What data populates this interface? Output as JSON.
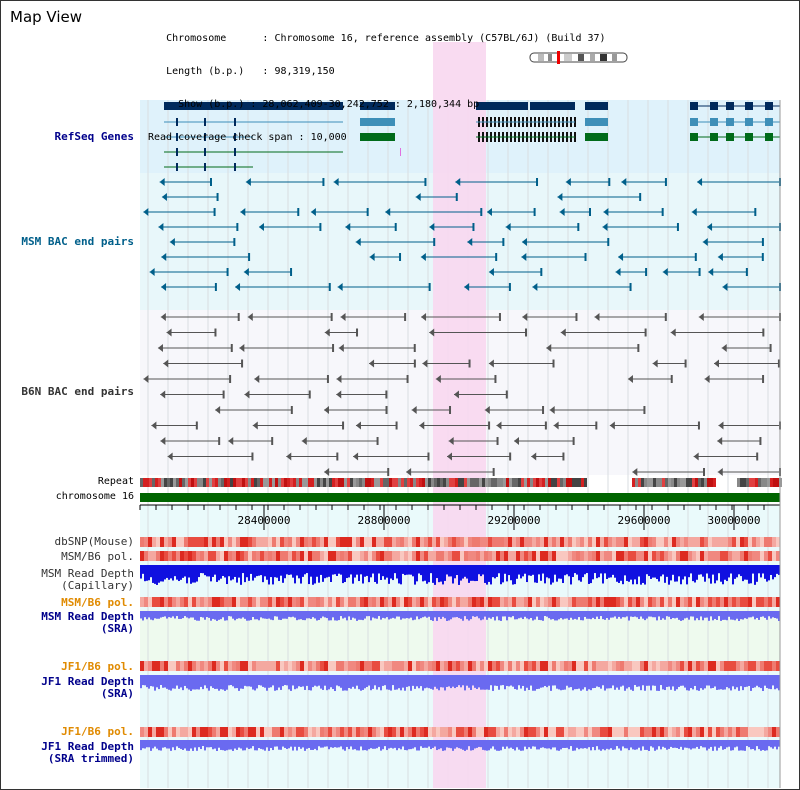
{
  "view_title": "Map View",
  "info": {
    "chromosome_label": "Chromosome",
    "chromosome_value": "Chromosome 16, reference assembly (C57BL/6J) (Build 37)",
    "length_label": "Length (b.p.)",
    "length_value": "98,319,150",
    "show_label": "Show (b.p.)",
    "show_value": "28,062,409-30,242,752 : 2,180,344 bp",
    "coverage_label": "Read coverage check span",
    "coverage_value": "10,000"
  },
  "tracks": {
    "refseq": "RefSeq Genes",
    "msm_bac": "MSM BAC end pairs",
    "b6n_bac": "B6N BAC end pairs",
    "repeat": "Repeat",
    "chromosome": "chromosome 16",
    "dbsnp": "dbSNP(Mouse)",
    "msm_b6_pol_1": "MSM/B6 pol.",
    "msm_read_depth_cap_1": "MSM Read Depth",
    "msm_read_depth_cap_2": "(Capillary)",
    "msm_b6_pol_2": "MSM/B6 pol.",
    "msm_read_depth_sra_1": "MSM Read Depth",
    "msm_read_depth_sra_2": "(SRA)",
    "jf1_b6_pol_1": "JF1/B6 pol.",
    "jf1_read_depth_sra_1": "JF1 Read Depth",
    "jf1_read_depth_sra_2": "(SRA)",
    "jf1_b6_pol_2": "JF1/B6 pol.",
    "jf1_read_depth_trim_1": "JF1 Read Depth",
    "jf1_read_depth_trim_2": "(SRA trimmed)"
  },
  "ruler": {
    "ticks": [
      "28400000",
      "28800000",
      "29200000",
      "29600000",
      "30000000"
    ]
  },
  "colors": {
    "refseq_bg": "#dff2fb",
    "bac_bg": "#e8f7fa",
    "highlight": "#f8d7f0",
    "gene_dark": "#002a5c",
    "gene_mid": "#3e8fb8",
    "gene_green": "#006b1a",
    "msm_bac": "#005f8a",
    "b6n_bac": "#555555",
    "chrom_green": "#006400",
    "snp_red": "#e8453c",
    "depth_blue": "#1010e0",
    "depth_light": "#6a6af0"
  }
}
